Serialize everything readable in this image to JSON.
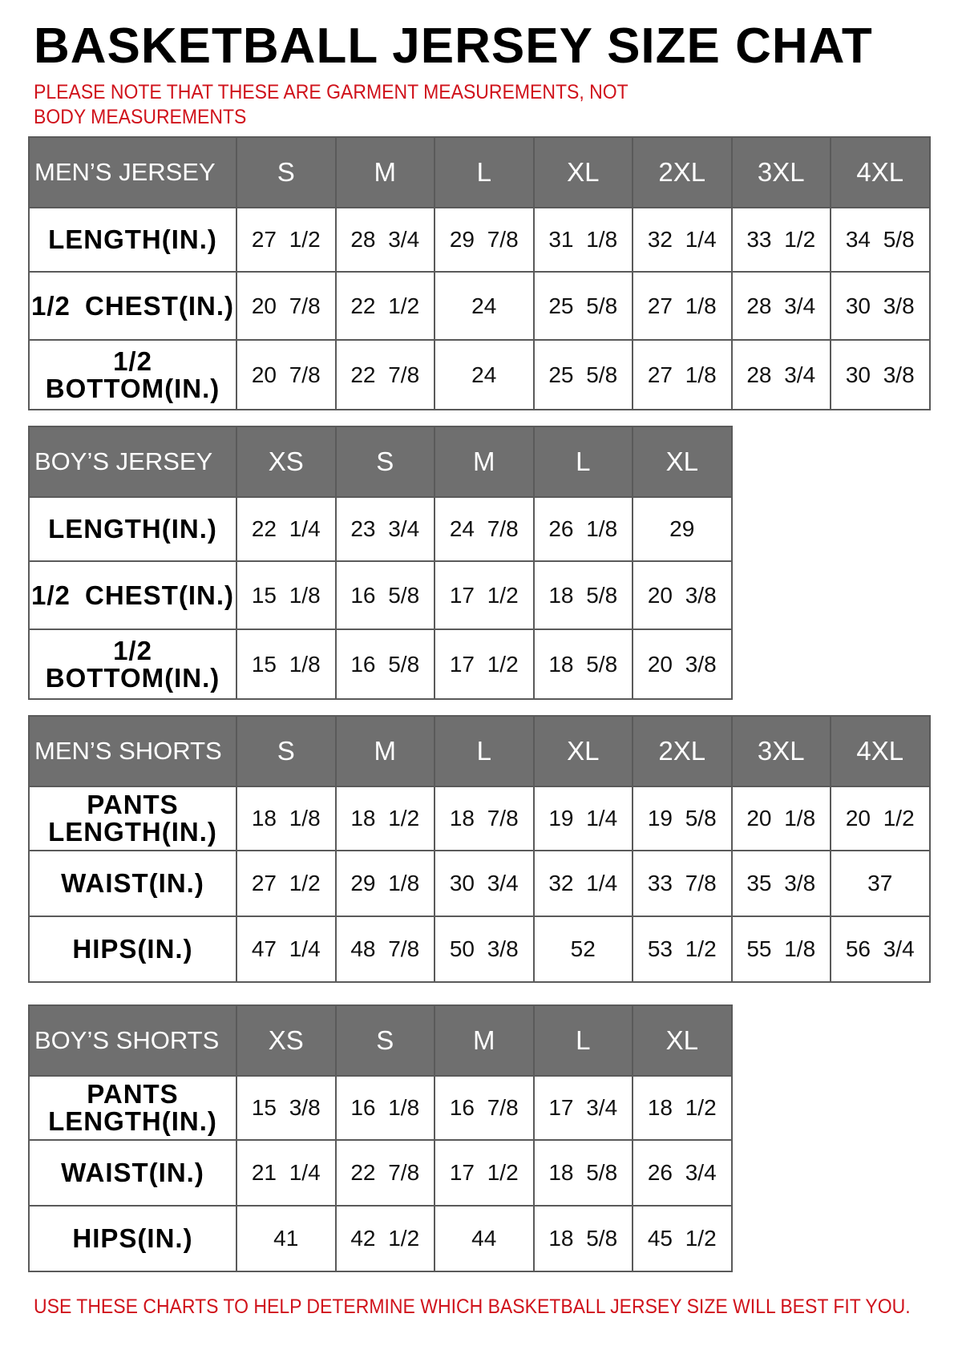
{
  "title": "BASKETBALL JERSEY SIZE CHAT",
  "note": "PLEASE NOTE THAT THESE ARE GARMENT MEASUREMENTS, NOT BODY MEASUREMENTS",
  "footer": "USE THESE CHARTS TO HELP DETERMINE WHICH BASKETBALL JERSEY SIZE WILL BEST FIT YOU.",
  "colors": {
    "header_bg": "#6f6f6f",
    "note_red": "#d0121b"
  },
  "tables": [
    {
      "heading": "MEN’S JERSEY",
      "sizes": [
        "S",
        "M",
        "L",
        "XL",
        "2XL",
        "3XL",
        "4XL"
      ],
      "rows": [
        {
          "label": "LENGTH(IN.)",
          "values": [
            "27 1/2",
            "28 3/4",
            "29 7/8",
            "31 1/8",
            "32 1/4",
            "33 1/2",
            "34 5/8"
          ]
        },
        {
          "label": "1/2 CHEST(IN.)",
          "values": [
            "20 7/8",
            "22 1/2",
            "24",
            "25 5/8",
            "27 1/8",
            "28 3/4",
            "30 3/8"
          ]
        },
        {
          "label": "1/2 BOTTOM(IN.)",
          "values": [
            "20 7/8",
            "22 7/8",
            "24",
            "25 5/8",
            "27 1/8",
            "28 3/4",
            "30 3/8"
          ]
        }
      ]
    },
    {
      "heading": "BOY’S JERSEY",
      "sizes": [
        "XS",
        "S",
        "M",
        "L",
        "XL"
      ],
      "rows": [
        {
          "label": "LENGTH(IN.)",
          "values": [
            "22 1/4",
            "23 3/4",
            "24 7/8",
            "26 1/8",
            "29"
          ]
        },
        {
          "label": "1/2 CHEST(IN.)",
          "values": [
            "15 1/8",
            "16 5/8",
            "17 1/2",
            "18 5/8",
            "20 3/8"
          ]
        },
        {
          "label": "1/2 BOTTOM(IN.)",
          "values": [
            "15 1/8",
            "16 5/8",
            "17 1/2",
            "18 5/8",
            "20 3/8"
          ]
        }
      ]
    },
    {
      "heading": "MEN’S SHORTS",
      "sizes": [
        "S",
        "M",
        "L",
        "XL",
        "2XL",
        "3XL",
        "4XL"
      ],
      "rows": [
        {
          "label": "PANTS LENGTH(IN.)",
          "values": [
            "18 1/8",
            "18 1/2",
            "18 7/8",
            "19 1/4",
            "19 5/8",
            "20 1/8",
            "20 1/2"
          ]
        },
        {
          "label": "WAIST(IN.)",
          "values": [
            "27 1/2",
            "29 1/8",
            "30 3/4",
            "32 1/4",
            "33 7/8",
            "35 3/8",
            "37"
          ]
        },
        {
          "label": "HIPS(IN.)",
          "values": [
            "47 1/4",
            "48 7/8",
            "50 3/8",
            "52",
            "53 1/2",
            "55 1/8",
            "56 3/4"
          ]
        }
      ]
    },
    {
      "heading": "BOY’S SHORTS",
      "sizes": [
        "XS",
        "S",
        "M",
        "L",
        "XL"
      ],
      "rows": [
        {
          "label": "PANTS LENGTH(IN.)",
          "values": [
            "15 3/8",
            "16 1/8",
            "16 7/8",
            "17 3/4",
            "18 1/2"
          ]
        },
        {
          "label": "WAIST(IN.)",
          "values": [
            "21 1/4",
            "22 7/8",
            "17 1/2",
            "18 5/8",
            "26 3/4"
          ]
        },
        {
          "label": "HIPS(IN.)",
          "values": [
            "41",
            "42 1/2",
            "44",
            "18 5/8",
            "45 1/2"
          ]
        }
      ]
    }
  ]
}
